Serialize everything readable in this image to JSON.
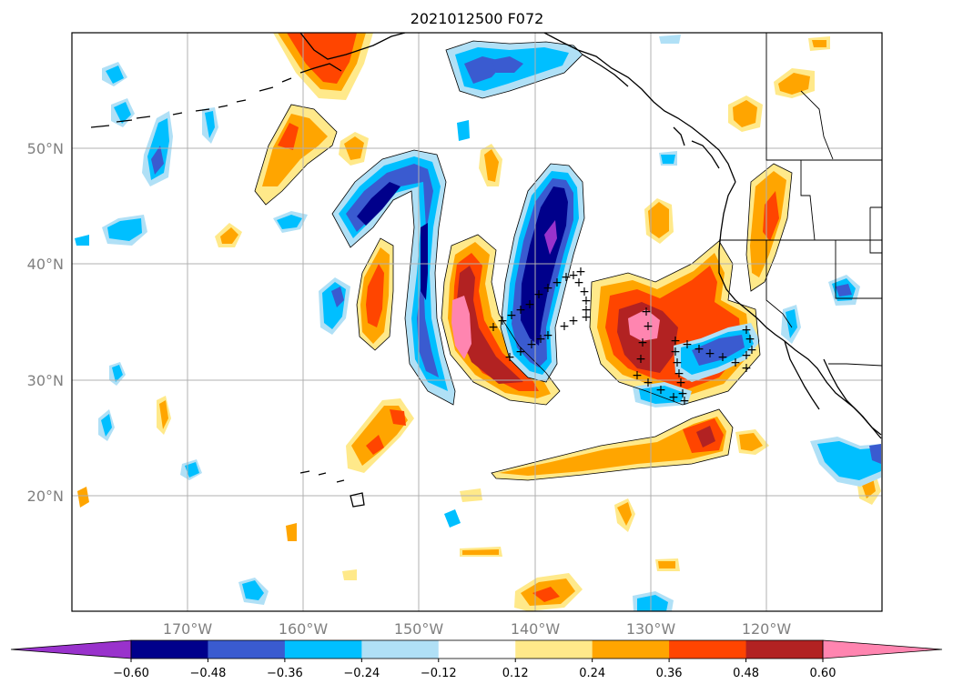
{
  "title": "2021012500 F072",
  "map": {
    "lon_range": [
      -180,
      -110
    ],
    "lat_range": [
      10,
      60
    ],
    "gridlines": true,
    "lon_ticks": [
      {
        "value": -170,
        "label": "170°W"
      },
      {
        "value": -160,
        "label": "160°W"
      },
      {
        "value": -150,
        "label": "150°W"
      },
      {
        "value": -140,
        "label": "140°W"
      },
      {
        "value": -130,
        "label": "130°W"
      },
      {
        "value": -120,
        "label": "120°W"
      }
    ],
    "lat_ticks": [
      {
        "value": 20,
        "label": "20°N"
      },
      {
        "value": 30,
        "label": "30°N"
      },
      {
        "value": 40,
        "label": "40°N"
      },
      {
        "value": 50,
        "label": "50°N"
      }
    ],
    "marker_symbol": "+"
  },
  "colorbar": {
    "extend": "both",
    "bins": [
      {
        "color": "#9932cc"
      },
      {
        "color": "#00008b"
      },
      {
        "color": "#3a5bd0"
      },
      {
        "color": "#00bfff"
      },
      {
        "color": "#b0e0f6"
      },
      {
        "color": "#ffffff"
      },
      {
        "color": "#ffe98a"
      },
      {
        "color": "#ffa500"
      },
      {
        "color": "#ff4500"
      },
      {
        "color": "#b22222"
      },
      {
        "color": "#ff85b0"
      }
    ],
    "ticks": [
      "−0.60",
      "−0.48",
      "−0.36",
      "−0.24",
      "−0.12",
      "0.12",
      "0.24",
      "0.36",
      "0.48",
      "0.60"
    ]
  }
}
